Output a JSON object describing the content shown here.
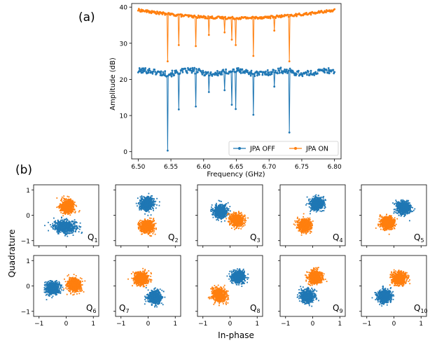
{
  "panel_labels": {
    "a": "(a)",
    "b": "(b)"
  },
  "colors": {
    "off": "#1f77b4",
    "on": "#ff7f0e"
  },
  "chart_data": [
    {
      "type": "line",
      "panel": "(a)",
      "xlabel": "Frequency (GHz)",
      "ylabel": "Amplitude (dB)",
      "xlim": [
        6.49,
        6.81
      ],
      "ylim": [
        -2,
        41
      ],
      "xticks": [
        6.5,
        6.55,
        6.6,
        6.65,
        6.7,
        6.75,
        6.8
      ],
      "xtick_labels": [
        "6.50",
        "6.55",
        "6.60",
        "6.65",
        "6.70",
        "6.75",
        "6.80"
      ],
      "yticks": [
        0,
        10,
        20,
        30,
        40
      ],
      "ytick_labels": [
        "0",
        "10",
        "20",
        "30",
        "40"
      ],
      "legend": [
        "JPA OFF",
        "JPA ON"
      ],
      "legend_loc": "lower right",
      "series": [
        {
          "name": "JPA OFF",
          "baseline": 22,
          "dips": [
            {
              "x": 6.545,
              "y": 0.3
            },
            {
              "x": 6.562,
              "y": 11.7
            },
            {
              "x": 6.588,
              "y": 12.5
            },
            {
              "x": 6.608,
              "y": 16.5
            },
            {
              "x": 6.632,
              "y": 17.0
            },
            {
              "x": 6.643,
              "y": 13.0
            },
            {
              "x": 6.649,
              "y": 11.8
            },
            {
              "x": 6.676,
              "y": 10.2
            },
            {
              "x": 6.708,
              "y": 18.0
            },
            {
              "x": 6.731,
              "y": 5.3
            }
          ]
        },
        {
          "name": "JPA ON",
          "baseline": 37,
          "dips": [
            {
              "x": 6.545,
              "y": 25.0
            },
            {
              "x": 6.562,
              "y": 29.5
            },
            {
              "x": 6.588,
              "y": 29.2
            },
            {
              "x": 6.608,
              "y": 32.3
            },
            {
              "x": 6.632,
              "y": 33.0
            },
            {
              "x": 6.643,
              "y": 31.0
            },
            {
              "x": 6.649,
              "y": 29.5
            },
            {
              "x": 6.676,
              "y": 26.5
            },
            {
              "x": 6.708,
              "y": 33.5
            },
            {
              "x": 6.731,
              "y": 25.0
            }
          ]
        }
      ]
    },
    {
      "type": "scatter",
      "panel": "(b)",
      "xlabel": "In-phase",
      "ylabel": "Quadrature",
      "xlim": [
        -1.2,
        1.2
      ],
      "ylim": [
        -1.2,
        1.2
      ],
      "xticks": [
        -1,
        0,
        1
      ],
      "xtick_labels": [
        "−1",
        "0",
        "1"
      ],
      "yticks": [
        -1,
        0,
        1
      ],
      "ytick_labels": [
        "−1",
        "0",
        "1"
      ],
      "qubits": [
        {
          "label": "Q",
          "sub": "1",
          "off": [
            -0.05,
            -0.45
          ],
          "on": [
            0.05,
            0.35
          ],
          "off_spread": [
            0.34,
            0.2
          ]
        },
        {
          "label": "Q",
          "sub": "2",
          "off": [
            -0.05,
            0.45
          ],
          "on": [
            -0.05,
            -0.45
          ]
        },
        {
          "label": "Q",
          "sub": "3",
          "off": [
            -0.35,
            0.15
          ],
          "on": [
            0.25,
            -0.2
          ]
        },
        {
          "label": "Q",
          "sub": "4",
          "off": [
            0.15,
            0.45
          ],
          "on": [
            -0.3,
            -0.4
          ]
        },
        {
          "label": "Q",
          "sub": "5",
          "off": [
            0.35,
            0.3
          ],
          "on": [
            -0.25,
            -0.3
          ]
        },
        {
          "label": "Q",
          "sub": "6",
          "off": [
            -0.5,
            -0.1
          ],
          "on": [
            0.3,
            0.05
          ]
        },
        {
          "label": "Q",
          "sub": "7",
          "off": [
            0.25,
            -0.45
          ],
          "on": [
            -0.25,
            0.3
          ]
        },
        {
          "label": "Q",
          "sub": "8",
          "off": [
            0.3,
            0.35
          ],
          "on": [
            -0.4,
            -0.35
          ]
        },
        {
          "label": "Q",
          "sub": "9",
          "off": [
            -0.2,
            -0.4
          ],
          "on": [
            0.1,
            0.35
          ]
        },
        {
          "label": "Q",
          "sub": "10",
          "off": [
            -0.35,
            -0.4
          ],
          "on": [
            0.2,
            0.3
          ]
        }
      ]
    }
  ]
}
